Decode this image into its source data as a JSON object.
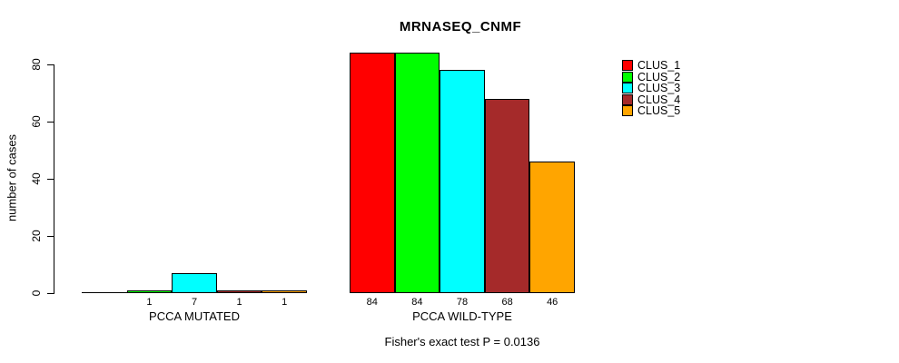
{
  "title": "MRNASEQ_CNMF",
  "chart_data": {
    "type": "bar",
    "title": "MRNASEQ_CNMF",
    "xlabel": "",
    "ylabel": "number of cases",
    "ylim": [
      0,
      80
    ],
    "yticks": [
      0,
      20,
      40,
      60,
      80
    ],
    "grid": false,
    "legend_position": "top-right",
    "categories": [
      "PCCA MUTATED",
      "PCCA WILD-TYPE"
    ],
    "series": [
      {
        "name": "CLUS_1",
        "color": "#FF0000",
        "values": [
          0,
          84
        ]
      },
      {
        "name": "CLUS_2",
        "color": "#00FF00",
        "values": [
          1,
          84
        ]
      },
      {
        "name": "CLUS_3",
        "color": "#00FFFF",
        "values": [
          7,
          78
        ]
      },
      {
        "name": "CLUS_4",
        "color": "#A52A2A",
        "values": [
          1,
          68
        ]
      },
      {
        "name": "CLUS_5",
        "color": "#FFA500",
        "values": [
          1,
          46
        ]
      }
    ],
    "bar_value_labels": [
      [
        "",
        "1",
        "7",
        "1",
        "1"
      ],
      [
        "84",
        "84",
        "78",
        "68",
        "46"
      ]
    ],
    "annotation": "Fisher's exact test P = 0.0136"
  }
}
